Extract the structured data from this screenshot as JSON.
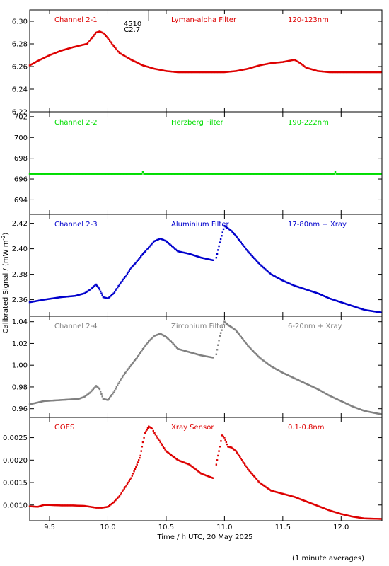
{
  "footer_note": "(1 minute averages)",
  "flare_annotation": {
    "line1": "4510",
    "line2": "C2.7",
    "x": 10.35
  },
  "colors": {
    "red": "#dd0000",
    "green": "#00dd00",
    "blue": "#0000cc",
    "grey": "#808080",
    "axis": "#000000"
  },
  "chart_data": [
    {
      "type": "scatter",
      "labels": [
        "Channel 2-1",
        "Lyman-alpha Filter",
        "120-123nm"
      ],
      "color": "#dd0000",
      "ylim": [
        6.22,
        6.31
      ],
      "yticks": [
        6.22,
        6.24,
        6.26,
        6.28,
        6.3
      ],
      "ytick_labels": [
        "6.22",
        "6.24",
        "6.26",
        "6.28",
        "6.30"
      ],
      "series": [
        {
          "x": [
            9.33,
            9.4,
            9.5,
            9.6,
            9.7,
            9.78,
            9.82,
            9.87,
            9.9,
            9.93,
            9.97,
            10.0,
            10.05,
            10.1,
            10.2,
            10.3,
            10.4,
            10.5,
            10.6,
            10.8,
            11.0,
            11.1,
            11.2,
            11.3,
            11.4,
            11.5,
            11.55,
            11.6,
            11.65,
            11.7,
            11.8,
            11.9,
            12.0,
            12.2,
            12.34
          ],
          "y": [
            6.261,
            6.265,
            6.27,
            6.274,
            6.277,
            6.279,
            6.28,
            6.286,
            6.29,
            6.291,
            6.289,
            6.285,
            6.278,
            6.272,
            6.266,
            6.261,
            6.258,
            6.256,
            6.255,
            6.255,
            6.255,
            6.256,
            6.258,
            6.261,
            6.263,
            6.264,
            6.265,
            6.266,
            6.263,
            6.259,
            6.256,
            6.255,
            6.255,
            6.255,
            6.255
          ]
        }
      ]
    },
    {
      "type": "scatter",
      "labels": [
        "Channel 2-2",
        "Herzberg Filter",
        "190-222nm"
      ],
      "color": "#00dd00",
      "ylim": [
        692.6,
        702.4
      ],
      "yticks": [
        694,
        696,
        698,
        700,
        702
      ],
      "ytick_labels": [
        "694",
        "696",
        "698",
        "700",
        "702"
      ],
      "series": [
        {
          "x": [
            9.33,
            10.29,
            10.3,
            10.31,
            11.94,
            11.95,
            11.96,
            12.34
          ],
          "y": [
            696.5,
            696.5,
            696.7,
            696.5,
            696.5,
            696.7,
            696.5,
            696.5
          ]
        }
      ]
    },
    {
      "type": "scatter",
      "labels": [
        "Channel 2-3",
        "Aluminium Filter",
        "17-80nm + Xray"
      ],
      "color": "#0000cc",
      "ylim": [
        2.347,
        2.427
      ],
      "yticks": [
        2.36,
        2.38,
        2.4,
        2.42
      ],
      "ytick_labels": [
        "2.36",
        "2.38",
        "2.40",
        "2.42"
      ],
      "series": [
        {
          "x": [
            9.33,
            9.45,
            9.6,
            9.72,
            9.8,
            9.85,
            9.9,
            9.93,
            9.96,
            10.0,
            10.05,
            10.1,
            10.15,
            10.2,
            10.25,
            10.3,
            10.35,
            10.4,
            10.45,
            10.5,
            10.55,
            10.6,
            10.7,
            10.8,
            10.9
          ],
          "y": [
            2.358,
            2.36,
            2.362,
            2.363,
            2.365,
            2.368,
            2.372,
            2.368,
            2.362,
            2.361,
            2.365,
            2.372,
            2.378,
            2.385,
            2.39,
            2.396,
            2.401,
            2.406,
            2.408,
            2.406,
            2.402,
            2.398,
            2.396,
            2.393,
            2.391
          ]
        },
        {
          "x": [
            10.93,
            10.96,
            11.0,
            11.03,
            11.06,
            11.1,
            11.15,
            11.2,
            11.3,
            11.4,
            11.5,
            11.6,
            11.7,
            11.8,
            11.9,
            12.0,
            12.1,
            12.2,
            12.34
          ],
          "y": [
            2.393,
            2.405,
            2.418,
            2.416,
            2.414,
            2.41,
            2.404,
            2.398,
            2.388,
            2.38,
            2.375,
            2.371,
            2.368,
            2.365,
            2.361,
            2.358,
            2.355,
            2.352,
            2.35
          ]
        }
      ]
    },
    {
      "type": "scatter",
      "labels": [
        "Channel 2-4",
        "Zirconium Filter",
        "6-20nm + Xray"
      ],
      "color": "#808080",
      "ylim": [
        0.952,
        1.045
      ],
      "yticks": [
        0.96,
        0.98,
        1.0,
        1.02,
        1.04
      ],
      "ytick_labels": [
        "0.96",
        "0.98",
        "1.00",
        "1.02",
        "1.04"
      ],
      "series": [
        {
          "x": [
            9.33,
            9.45,
            9.6,
            9.75,
            9.8,
            9.85,
            9.9,
            9.93,
            9.96,
            10.0,
            10.05,
            10.1,
            10.15,
            10.2,
            10.25,
            10.3,
            10.35,
            10.4,
            10.45,
            10.5,
            10.55,
            10.6,
            10.7,
            10.8,
            10.9
          ],
          "y": [
            0.964,
            0.967,
            0.968,
            0.969,
            0.971,
            0.975,
            0.981,
            0.978,
            0.969,
            0.968,
            0.975,
            0.985,
            0.993,
            1.0,
            1.007,
            1.015,
            1.022,
            1.027,
            1.029,
            1.026,
            1.021,
            1.015,
            1.012,
            1.009,
            1.007
          ]
        },
        {
          "x": [
            10.93,
            10.96,
            11.0,
            11.03,
            11.06,
            11.1,
            11.15,
            11.2,
            11.3,
            11.4,
            11.5,
            11.6,
            11.7,
            11.8,
            11.9,
            12.0,
            12.1,
            12.2,
            12.34
          ],
          "y": [
            1.01,
            1.027,
            1.04,
            1.037,
            1.035,
            1.032,
            1.025,
            1.018,
            1.007,
            0.999,
            0.993,
            0.988,
            0.983,
            0.978,
            0.972,
            0.967,
            0.962,
            0.958,
            0.955
          ]
        }
      ]
    },
    {
      "type": "scatter",
      "labels": [
        "GOES",
        "Xray Sensor",
        "0.1-0.8nm"
      ],
      "color": "#dd0000",
      "ylim": [
        0.00065,
        0.00295
      ],
      "yticks": [
        0.001,
        0.0015,
        0.002,
        0.0025
      ],
      "ytick_labels": [
        "0.0010",
        "0.0015",
        "0.0020",
        "0.0025"
      ],
      "series": [
        {
          "x": [
            9.33,
            9.4,
            9.45,
            9.5,
            9.6,
            9.7,
            9.8,
            9.9,
            9.95,
            10.0,
            10.05,
            10.1,
            10.15,
            10.2,
            10.25,
            10.28,
            10.3,
            10.32,
            10.35,
            10.38,
            10.4,
            10.45,
            10.5,
            10.55,
            10.6,
            10.7,
            10.8,
            10.9
          ],
          "y": [
            0.00097,
            0.00096,
            0.001,
            0.001,
            0.00099,
            0.00099,
            0.00098,
            0.00094,
            0.00094,
            0.00096,
            0.00106,
            0.0012,
            0.0014,
            0.0016,
            0.0019,
            0.0021,
            0.0024,
            0.0026,
            0.00275,
            0.0027,
            0.0026,
            0.0024,
            0.0022,
            0.0021,
            0.002,
            0.0019,
            0.0017,
            0.0016
          ]
        },
        {
          "x": [
            10.93,
            10.96,
            10.98,
            11.0,
            11.03,
            11.06,
            11.1,
            11.15,
            11.2,
            11.3,
            11.4,
            11.5,
            11.6,
            11.7,
            11.8,
            11.9,
            12.0,
            12.1,
            12.2,
            12.34
          ],
          "y": [
            0.0019,
            0.0023,
            0.00255,
            0.0025,
            0.0023,
            0.00228,
            0.0022,
            0.002,
            0.0018,
            0.0015,
            0.00132,
            0.00125,
            0.00118,
            0.00108,
            0.00098,
            0.00088,
            0.0008,
            0.00074,
            0.0007,
            0.00069
          ]
        }
      ]
    }
  ],
  "x_axis": {
    "label": "Time / h UTC, 20 May 2025",
    "xlim": [
      9.33,
      12.35
    ],
    "ticks": [
      9.5,
      10.0,
      10.5,
      11.0,
      11.5,
      12.0
    ],
    "tick_labels": [
      "9.5",
      "10.0",
      "10.5",
      "11.0",
      "11.5",
      "12.0"
    ]
  },
  "y_axis": {
    "label_main": "Calibrated Signal / (mW m",
    "label_sup": "-2",
    "label_end": ")"
  }
}
